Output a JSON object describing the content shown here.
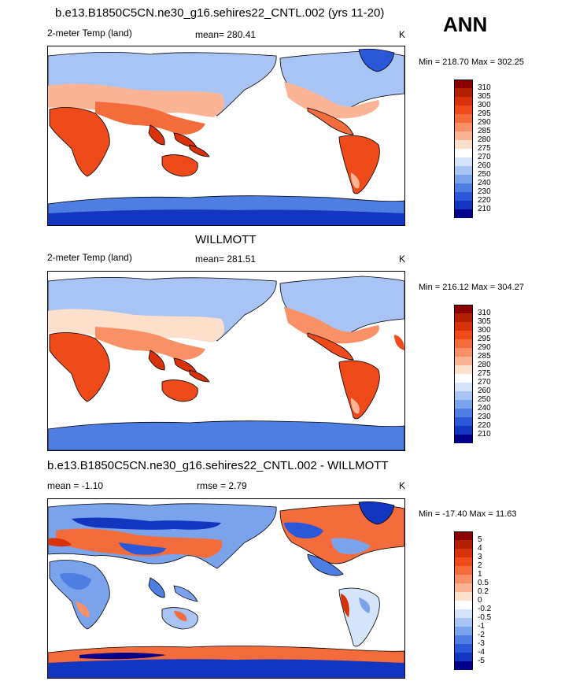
{
  "season": "ANN",
  "units": "K",
  "panels": [
    {
      "title": "b.e13.B1850C5CN.ne30_g16.sehires22_CNTL.002 (yrs 11-20)",
      "variable": "2-meter Temp (land)",
      "stat": "mean= 280.41",
      "units": "K",
      "minmax": "Min = 218.70 Max = 302.25",
      "colorbar": {
        "labels": [
          "310",
          "305",
          "300",
          "295",
          "290",
          "285",
          "280",
          "275",
          "270",
          "260",
          "250",
          "240",
          "230",
          "220",
          "210"
        ],
        "colors": [
          "#8b0000",
          "#b22000",
          "#d8320a",
          "#ee4a1a",
          "#f56c3c",
          "#fa9066",
          "#fbb596",
          "#fde0cc",
          "#ffffff",
          "#d4e4fb",
          "#a8c4f4",
          "#7aa3ec",
          "#4f7ee3",
          "#2b58d8",
          "#1236c0",
          "#00008b"
        ]
      }
    },
    {
      "title": "WILLMOTT",
      "variable": "2-meter Temp (land)",
      "stat": "mean= 281.51",
      "units": "K",
      "minmax": "Min = 216.12 Max = 304.27",
      "colorbar": {
        "labels": [
          "310",
          "305",
          "300",
          "295",
          "290",
          "285",
          "280",
          "275",
          "270",
          "260",
          "250",
          "240",
          "230",
          "220",
          "210"
        ],
        "colors": [
          "#8b0000",
          "#b22000",
          "#d8320a",
          "#ee4a1a",
          "#f56c3c",
          "#fa9066",
          "#fbb596",
          "#fde0cc",
          "#ffffff",
          "#d4e4fb",
          "#a8c4f4",
          "#7aa3ec",
          "#4f7ee3",
          "#2b58d8",
          "#1236c0",
          "#00008b"
        ]
      }
    },
    {
      "title": "b.e13.B1850C5CN.ne30_g16.sehires22_CNTL.002 - WILLMOTT",
      "stat": "mean =  -1.10",
      "rmse": "rmse =   2.79",
      "units": "K",
      "minmax": "Min = -17.40 Max =  11.63",
      "colorbar": {
        "labels": [
          "5",
          "4",
          "3",
          "2",
          "1",
          "0.5",
          "0.2",
          "0",
          "-0.2",
          "-0.5",
          "-1",
          "-2",
          "-3",
          "-4",
          "-5"
        ],
        "colors": [
          "#8b0000",
          "#b22000",
          "#d8320a",
          "#ee4a1a",
          "#f56c3c",
          "#fa9066",
          "#fbb596",
          "#fde0cc",
          "#ffffff",
          "#d4e4fb",
          "#a8c4f4",
          "#7aa3ec",
          "#4f7ee3",
          "#2b58d8",
          "#1236c0",
          "#00008b"
        ]
      }
    }
  ]
}
